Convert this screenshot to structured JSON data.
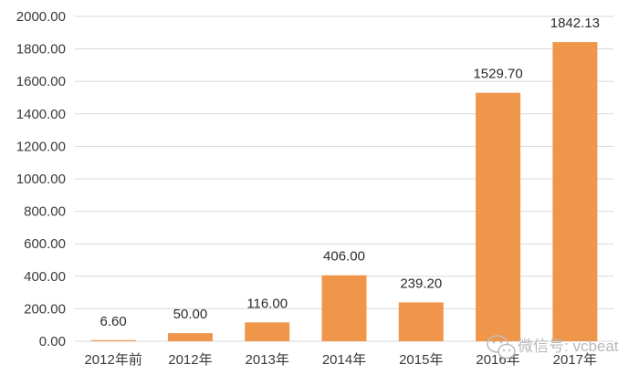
{
  "chart_data": {
    "type": "bar",
    "categories": [
      "2012年前",
      "2012年",
      "2013年",
      "2014年",
      "2015年",
      "2016年",
      "2017年"
    ],
    "values": [
      6.6,
      50.0,
      116.0,
      406.0,
      239.2,
      1529.7,
      1842.13
    ],
    "data_labels": [
      "6.60",
      "50.00",
      "116.00",
      "406.00",
      "239.20",
      "1529.70",
      "1842.13"
    ],
    "yticks": [
      0,
      200,
      400,
      600,
      800,
      1000,
      1200,
      1400,
      1600,
      1800,
      2000
    ],
    "ytick_labels": [
      "0.00",
      "200.00",
      "400.00",
      "600.00",
      "800.00",
      "1000.00",
      "1200.00",
      "1400.00",
      "1600.00",
      "1800.00",
      "2000.00"
    ],
    "ylim": [
      0,
      2000
    ],
    "grid": true,
    "legend": "none",
    "bar_color": "#F0964B",
    "grid_color": "#d9d9d9"
  },
  "watermark": {
    "text": "微信号: vcbeat",
    "icon": "wechat-icon"
  }
}
